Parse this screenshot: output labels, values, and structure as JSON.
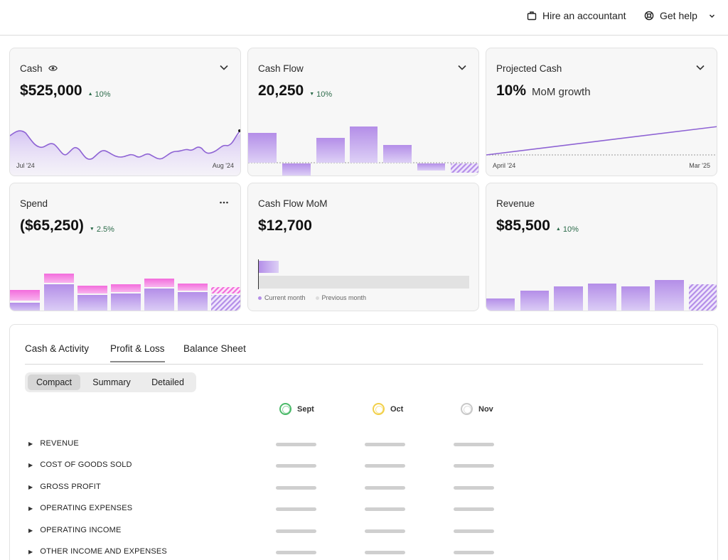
{
  "header": {
    "hire_label": "Hire an accountant",
    "help_label": "Get help"
  },
  "cards": {
    "cash": {
      "title": "Cash",
      "value": "$525,000",
      "delta": "10%",
      "x_start": "Jul '24",
      "x_end": "Aug '24"
    },
    "cash_flow": {
      "title": "Cash Flow",
      "value": "20,250",
      "delta": "10%"
    },
    "projected_cash": {
      "title": "Projected Cash",
      "value": "10%",
      "value_suffix": "MoM growth",
      "x_start": "April '24",
      "x_end": "Mar '25"
    },
    "spend": {
      "title": "Spend",
      "value": "($65,250)",
      "delta": "2.5%"
    },
    "cash_flow_mom": {
      "title": "Cash Flow MoM",
      "value": "$12,700",
      "legend_current": "Current month",
      "legend_previous": "Previous month"
    },
    "revenue": {
      "title": "Revenue",
      "value": "$85,500",
      "delta": "10%"
    }
  },
  "colors": {
    "accent_purple": "#b79ae8",
    "pink": "#f06ed8",
    "positive_green": "#2c6b4a",
    "sept_ring": "#4cba6a",
    "oct_ring": "#f2d04a",
    "nov_ring": "#c9c9c9"
  },
  "report": {
    "tabs": [
      "Cash & Activity",
      "Profit & Loss",
      "Balance Sheet"
    ],
    "active_tab": "Profit & Loss",
    "views": [
      "Compact",
      "Summary",
      "Detailed"
    ],
    "active_view": "Compact",
    "months": [
      "Sept",
      "Oct",
      "Nov"
    ],
    "rows": [
      "REVENUE",
      "COST OF GOODS SOLD",
      "GROSS PROFIT",
      "OPERATING EXPENSES",
      "OPERATING INCOME",
      "OTHER INCOME AND EXPENSES"
    ]
  }
}
